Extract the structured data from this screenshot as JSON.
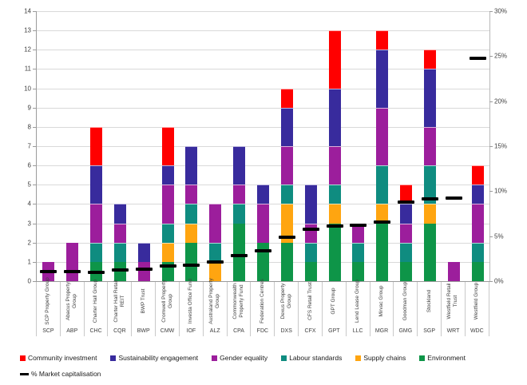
{
  "chart_data": {
    "type": "bar",
    "stacked": true,
    "title": "",
    "grid": true,
    "categories": [
      "SCP Property Group",
      "Abacus Property Group",
      "Charter Hall Group",
      "Charter Hall Retail REIT",
      "BWP Trust",
      "Cromwell Property Group",
      "Investa Office Fund",
      "Australand Property Group",
      "Commonwealth Property Fund",
      "Federation Centres",
      "Dexus Property Group",
      "CFS Retail Trust",
      "GPT Group",
      "Lend Lease Group",
      "Mirvac Group",
      "Goodman Group",
      "Stockland",
      "Westfield Retail Trust",
      "Westfield Group"
    ],
    "tickers": [
      "SCP",
      "ABP",
      "CHC",
      "CQR",
      "BWP",
      "CMW",
      "IOF",
      "ALZ",
      "CPA",
      "FDC",
      "DXS",
      "CFX",
      "GPT",
      "LLC",
      "MGR",
      "GMG",
      "SGP",
      "WRT",
      "WDC"
    ],
    "series": [
      {
        "name": "Environment",
        "color": "#0E9548",
        "values": [
          0,
          0,
          1,
          1,
          0,
          1,
          2,
          0,
          3,
          2,
          2,
          1,
          3,
          1,
          3,
          1,
          3,
          0,
          1
        ]
      },
      {
        "name": "Supply chains",
        "color": "#FFA510",
        "values": [
          0,
          0,
          0,
          0,
          0,
          1,
          1,
          1,
          0,
          0,
          2,
          0,
          1,
          0,
          1,
          0,
          1,
          0,
          0
        ]
      },
      {
        "name": "Labour standards",
        "color": "#0F8C80",
        "values": [
          0,
          0,
          1,
          1,
          0,
          1,
          1,
          1,
          1,
          0,
          1,
          1,
          1,
          1,
          2,
          1,
          2,
          0,
          1
        ]
      },
      {
        "name": "Gender equality",
        "color": "#9C1E9C",
        "values": [
          1,
          2,
          2,
          1,
          1,
          2,
          1,
          2,
          1,
          2,
          2,
          1,
          2,
          1,
          3,
          1,
          2,
          1,
          2
        ]
      },
      {
        "name": "Sustainability engagement",
        "color": "#382B9D",
        "values": [
          0,
          0,
          2,
          1,
          1,
          1,
          2,
          0,
          2,
          1,
          2,
          2,
          3,
          0,
          3,
          1,
          3,
          0,
          1
        ]
      },
      {
        "name": "Community investment",
        "color": "#FF0000",
        "values": [
          0,
          0,
          2,
          0,
          0,
          2,
          0,
          0,
          0,
          0,
          1,
          0,
          3,
          0,
          1,
          1,
          1,
          0,
          1
        ]
      }
    ],
    "market_cap_series_name": "% Market capitalisation",
    "market_cap_pct": [
      1.1,
      1.1,
      1.0,
      1.2,
      1.3,
      1.7,
      1.8,
      2.1,
      2.8,
      3.4,
      4.9,
      5.8,
      6.1,
      6.2,
      6.6,
      8.8,
      9.1,
      9.2,
      24.8
    ],
    "left_axis": {
      "min": 0,
      "max": 14,
      "step": 1
    },
    "right_axis": {
      "min": 0,
      "max": 30,
      "step": 5,
      "suffix": "%"
    },
    "legend": {
      "row1": [
        {
          "label": "Community investment",
          "color": "#FF0000",
          "shape": "square"
        },
        {
          "label": "Sustainability engagement",
          "color": "#382B9D",
          "shape": "square"
        },
        {
          "label": "Gender equality",
          "color": "#9C1E9C",
          "shape": "square"
        },
        {
          "label": "Labour standards",
          "color": "#0F8C80",
          "shape": "square"
        },
        {
          "label": "Supply chains",
          "color": "#FFA510",
          "shape": "square"
        },
        {
          "label": "Environment",
          "color": "#0E9548",
          "shape": "square"
        }
      ],
      "row2": [
        {
          "label": "% Market capitalisation",
          "color": "#000000",
          "shape": "dash"
        }
      ]
    },
    "marker_color": "#000000",
    "gridline_color": "#D9D9D9"
  }
}
